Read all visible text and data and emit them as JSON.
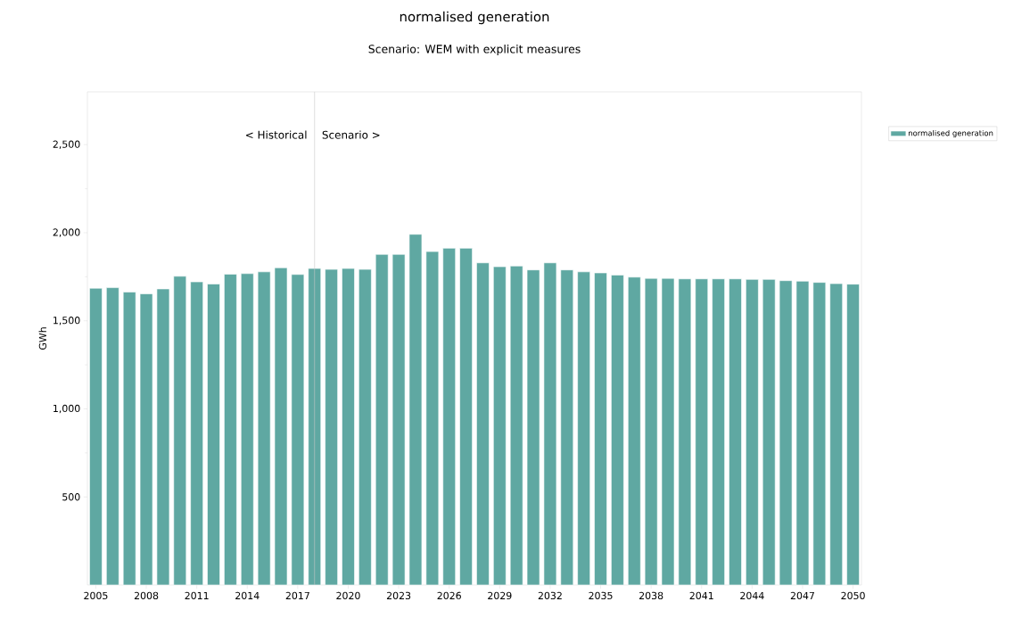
{
  "chart_data": {
    "type": "bar",
    "title": "normalised generation",
    "subtitle": "Scenario: WEM with explicit measures",
    "ylabel": "GWh",
    "x": [
      2005,
      2006,
      2007,
      2008,
      2009,
      2010,
      2011,
      2012,
      2013,
      2014,
      2015,
      2016,
      2017,
      2018,
      2019,
      2020,
      2021,
      2022,
      2023,
      2024,
      2025,
      2026,
      2027,
      2028,
      2029,
      2030,
      2031,
      2032,
      2033,
      2034,
      2035,
      2036,
      2037,
      2038,
      2039,
      2040,
      2041,
      2042,
      2043,
      2044,
      2045,
      2046,
      2047,
      2048,
      2049,
      2050
    ],
    "series": [
      {
        "name": "normalised generation",
        "color": "#5fa8a2",
        "values": [
          1685,
          1688,
          1663,
          1653,
          1681,
          1753,
          1721,
          1709,
          1765,
          1768,
          1778,
          1801,
          1763,
          1797,
          1792,
          1797,
          1792,
          1877,
          1877,
          1991,
          1893,
          1912,
          1912,
          1829,
          1807,
          1811,
          1789,
          1829,
          1789,
          1778,
          1772,
          1760,
          1748,
          1741,
          1741,
          1738,
          1738,
          1738,
          1738,
          1735,
          1735,
          1728,
          1725,
          1718,
          1711,
          1708
        ]
      }
    ],
    "xlim": [
      2004.5,
      2050.5
    ],
    "xticks": [
      2005,
      2008,
      2011,
      2014,
      2017,
      2020,
      2023,
      2026,
      2029,
      2032,
      2035,
      2038,
      2041,
      2044,
      2047,
      2050
    ],
    "ylim": [
      0,
      2800
    ],
    "yticks": [
      {
        "value": 500,
        "label": "500"
      },
      {
        "value": 1000,
        "label": "1,000"
      },
      {
        "value": 1500,
        "label": "1,500"
      },
      {
        "value": 2000,
        "label": "2,000"
      },
      {
        "value": 2500,
        "label": "2,500"
      }
    ],
    "ref_lines": [
      {
        "axis": "x",
        "value": 2018,
        "color": "#c8c8c8"
      }
    ],
    "annotations": [
      "< Historical",
      "Scenario >"
    ],
    "legend": "top right",
    "grid": false
  }
}
